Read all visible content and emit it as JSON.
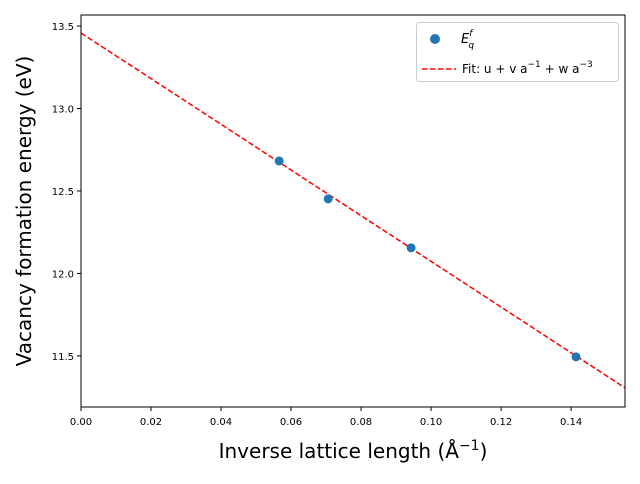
{
  "chart_data": {
    "type": "scatter",
    "xlabel": "Inverse lattice length (Å",
    "xlabel_sup": "−1",
    "xlabel_end": ")",
    "ylabel": "Vacancy formation energy (eV)",
    "xlim": [
      0,
      0.1554
    ],
    "ylim": [
      11.19,
      13.567
    ],
    "xticks": [
      "0.00",
      "0.02",
      "0.04",
      "0.06",
      "0.08",
      "0.10",
      "0.12",
      "0.14"
    ],
    "yticks": [
      "11.5",
      "12.0",
      "12.5",
      "13.0",
      "13.5"
    ],
    "grid": false,
    "legend_position": "top-right",
    "series": [
      {
        "name": "E_q^f",
        "kind": "scatter",
        "color": "#1f77b4",
        "x": [
          0.0566,
          0.0706,
          0.0943,
          0.1414
        ],
        "y": [
          12.682,
          12.452,
          12.155,
          11.494
        ]
      },
      {
        "name": "Fit: u + v a^-1 + w a^-3",
        "kind": "line",
        "style": "dashed",
        "color": "#ff0000",
        "x": [
          0,
          0.05,
          0.1,
          0.1554
        ],
        "y": [
          13.458,
          12.766,
          12.073,
          11.306
        ]
      }
    ],
    "legend": {
      "scatter_base": "E",
      "scatter_sup": "f",
      "scatter_sub": "q",
      "fit_a": "Fit: u + v a",
      "fit_sup1": "−1",
      "fit_b": " + w a",
      "fit_sup2": "−3"
    }
  }
}
